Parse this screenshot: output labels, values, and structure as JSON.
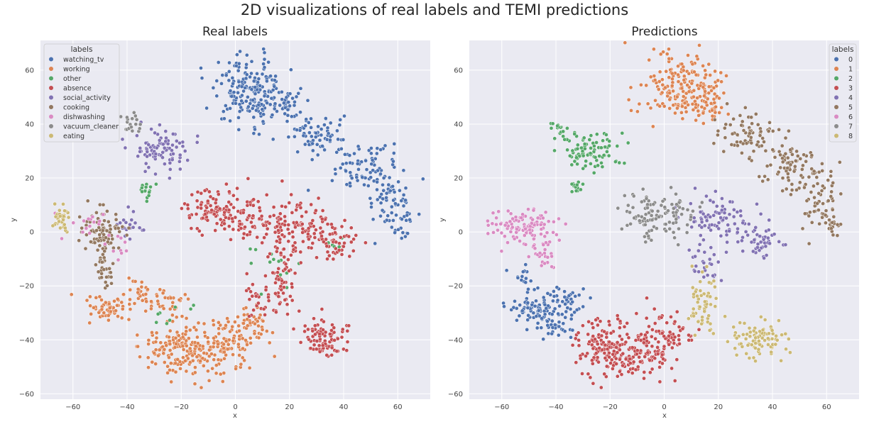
{
  "figure": {
    "title": "2D visualizations of real labels and TEMI predictions",
    "background": "#ffffff",
    "plot_background": "#eaeaf2",
    "grid_color": "#ffffff"
  },
  "palette": [
    "#4c72b0",
    "#dd8452",
    "#55a868",
    "#c44e52",
    "#8172b3",
    "#937860",
    "#da8bc3",
    "#8c8c8c",
    "#ccb974"
  ],
  "chart_data": [
    {
      "type": "scatter",
      "title": "Real labels",
      "xlabel": "x",
      "ylabel": "y",
      "xlim": [
        -72,
        72
      ],
      "ylim": [
        -62,
        71
      ],
      "xticks": [
        -60,
        -40,
        -20,
        0,
        20,
        40,
        60
      ],
      "yticks": [
        -60,
        -40,
        -20,
        0,
        20,
        40,
        60
      ],
      "grid": true,
      "legend": {
        "title": "labels",
        "placement": "top-left"
      },
      "series": [
        {
          "name": "watching_tv",
          "clusters": [
            {
              "cx": 5,
              "cy": 53,
              "sx": 7,
              "sy": 6.5,
              "n": 170
            },
            {
              "cx": 16,
              "cy": 48,
              "sx": 4,
              "sy": 4,
              "n": 50
            },
            {
              "cx": 30,
              "cy": 36,
              "sx": 6,
              "sy": 4,
              "n": 70
            },
            {
              "cx": 47,
              "cy": 24,
              "sx": 6,
              "sy": 4,
              "n": 80
            },
            {
              "cx": 58,
              "cy": 11,
              "sx": 4,
              "sy": 6,
              "n": 60
            },
            {
              "cx": 62,
              "cy": 3,
              "sx": 1.5,
              "sy": 3,
              "n": 15
            }
          ]
        },
        {
          "name": "working",
          "clusters": [
            {
              "cx": -48,
              "cy": -29,
              "sx": 4.5,
              "sy": 2.2,
              "n": 60
            },
            {
              "cx": -35,
              "cy": -23,
              "sx": 3,
              "sy": 3,
              "n": 25
            },
            {
              "cx": -25,
              "cy": -27,
              "sx": 4,
              "sy": 3,
              "n": 35
            },
            {
              "cx": -22,
              "cy": -43,
              "sx": 6,
              "sy": 5,
              "n": 120
            },
            {
              "cx": -10,
              "cy": -45,
              "sx": 6,
              "sy": 5,
              "n": 90
            },
            {
              "cx": 0,
              "cy": -38,
              "sx": 6,
              "sy": 4,
              "n": 70
            },
            {
              "cx": 6,
              "cy": -33,
              "sx": 3,
              "sy": 3,
              "n": 25
            }
          ]
        },
        {
          "name": "other",
          "clusters": [
            {
              "cx": -33,
              "cy": 16,
              "sx": 1.5,
              "sy": 2,
              "n": 15
            },
            {
              "cx": 14,
              "cy": -13,
              "sx": 6,
              "sy": 6,
              "n": 14
            },
            {
              "cx": 35,
              "cy": -6,
              "sx": 5,
              "sy": 3,
              "n": 8
            },
            {
              "cx": -25,
              "cy": -30,
              "sx": 5,
              "sy": 2,
              "n": 8
            }
          ]
        },
        {
          "name": "absence",
          "clusters": [
            {
              "cx": -8,
              "cy": 8,
              "sx": 6,
              "sy": 3.5,
              "n": 90
            },
            {
              "cx": 5,
              "cy": 5,
              "sx": 7,
              "sy": 5,
              "n": 90
            },
            {
              "cx": 25,
              "cy": 2,
              "sx": 6,
              "sy": 5,
              "n": 100
            },
            {
              "cx": 37,
              "cy": -4,
              "sx": 3.5,
              "sy": 4,
              "n": 40
            },
            {
              "cx": 17,
              "cy": -18,
              "sx": 3,
              "sy": 7,
              "n": 60
            },
            {
              "cx": 33,
              "cy": -40,
              "sx": 5,
              "sy": 4,
              "n": 90
            },
            {
              "cx": 8,
              "cy": -26,
              "sx": 3,
              "sy": 4,
              "n": 25
            }
          ]
        },
        {
          "name": "social_activity",
          "clusters": [
            {
              "cx": -27,
              "cy": 30,
              "sx": 5.5,
              "sy": 3.5,
              "n": 90
            },
            {
              "cx": -40,
              "cy": 2,
              "sx": 2.5,
              "sy": 3,
              "n": 20
            }
          ]
        },
        {
          "name": "cooking",
          "clusters": [
            {
              "cx": -50,
              "cy": 0,
              "sx": 4,
              "sy": 4,
              "n": 80
            },
            {
              "cx": -49,
              "cy": -13,
              "sx": 2,
              "sy": 4,
              "n": 30
            }
          ]
        },
        {
          "name": "dishwashing",
          "clusters": [
            {
              "cx": -53,
              "cy": 3,
              "sx": 4,
              "sy": 3,
              "n": 15
            },
            {
              "cx": -43,
              "cy": -7,
              "sx": 2.5,
              "sy": 3,
              "n": 10
            }
          ]
        },
        {
          "name": "vacuum_cleaner",
          "clusters": [
            {
              "cx": -39,
              "cy": 39,
              "sx": 2,
              "sy": 2,
              "n": 18
            }
          ]
        },
        {
          "name": "eating",
          "clusters": [
            {
              "cx": -64,
              "cy": 4,
              "sx": 2,
              "sy": 2.5,
              "n": 40
            }
          ]
        }
      ]
    },
    {
      "type": "scatter",
      "title": "Predictions",
      "xlabel": "x",
      "ylabel": "y",
      "xlim": [
        -72,
        72
      ],
      "ylim": [
        -62,
        71
      ],
      "xticks": [
        -60,
        -40,
        -20,
        0,
        20,
        40,
        60
      ],
      "yticks": [
        -60,
        -40,
        -20,
        0,
        20,
        40,
        60
      ],
      "grid": true,
      "legend": {
        "title": "labels",
        "placement": "top-right"
      },
      "series": [
        {
          "name": "0",
          "clusters": [
            {
              "cx": -48,
              "cy": -29,
              "sx": 4.5,
              "sy": 2.2,
              "n": 70
            },
            {
              "cx": -38,
              "cy": -25,
              "sx": 4,
              "sy": 3,
              "n": 40
            },
            {
              "cx": -40,
              "cy": -35,
              "sx": 4,
              "sy": 3,
              "n": 35
            },
            {
              "cx": -52,
              "cy": -16,
              "sx": 2,
              "sy": 2.5,
              "n": 15
            }
          ]
        },
        {
          "name": "1",
          "clusters": [
            {
              "cx": 5,
              "cy": 53,
              "sx": 7,
              "sy": 6.5,
              "n": 170
            },
            {
              "cx": 16,
              "cy": 48,
              "sx": 4,
              "sy": 4,
              "n": 50
            }
          ]
        },
        {
          "name": "2",
          "clusters": [
            {
              "cx": -27,
              "cy": 30,
              "sx": 5.5,
              "sy": 3.5,
              "n": 90
            },
            {
              "cx": -39,
              "cy": 38,
              "sx": 2,
              "sy": 2,
              "n": 15
            },
            {
              "cx": -33,
              "cy": 16,
              "sx": 1.5,
              "sy": 2,
              "n": 15
            }
          ]
        },
        {
          "name": "3",
          "clusters": [
            {
              "cx": -22,
              "cy": -43,
              "sx": 6,
              "sy": 5,
              "n": 140
            },
            {
              "cx": -10,
              "cy": -45,
              "sx": 6,
              "sy": 5,
              "n": 100
            },
            {
              "cx": 0,
              "cy": -38,
              "sx": 5,
              "sy": 4,
              "n": 70
            }
          ]
        },
        {
          "name": "4",
          "clusters": [
            {
              "cx": 20,
              "cy": 4,
              "sx": 6,
              "sy": 4,
              "n": 80
            },
            {
              "cx": 35,
              "cy": -3,
              "sx": 4,
              "sy": 4,
              "n": 50
            },
            {
              "cx": 15,
              "cy": -12,
              "sx": 3,
              "sy": 3,
              "n": 25
            }
          ]
        },
        {
          "name": "5",
          "clusters": [
            {
              "cx": 30,
              "cy": 36,
              "sx": 6,
              "sy": 4,
              "n": 70
            },
            {
              "cx": 47,
              "cy": 24,
              "sx": 6,
              "sy": 4,
              "n": 80
            },
            {
              "cx": 58,
              "cy": 11,
              "sx": 4,
              "sy": 6,
              "n": 60
            },
            {
              "cx": 62,
              "cy": 3,
              "sx": 1.5,
              "sy": 3,
              "n": 15
            }
          ]
        },
        {
          "name": "6",
          "clusters": [
            {
              "cx": -53,
              "cy": 2,
              "sx": 7,
              "sy": 3.5,
              "n": 110
            },
            {
              "cx": -45,
              "cy": -8,
              "sx": 3,
              "sy": 4,
              "n": 30
            }
          ]
        },
        {
          "name": "7",
          "clusters": [
            {
              "cx": -3,
              "cy": 6,
              "sx": 7,
              "sy": 4,
              "n": 110
            }
          ]
        },
        {
          "name": "8",
          "clusters": [
            {
              "cx": 15,
              "cy": -28,
              "sx": 3.5,
              "sy": 6,
              "n": 60
            },
            {
              "cx": 35,
              "cy": -40,
              "sx": 5,
              "sy": 3.5,
              "n": 90
            }
          ]
        }
      ]
    }
  ]
}
